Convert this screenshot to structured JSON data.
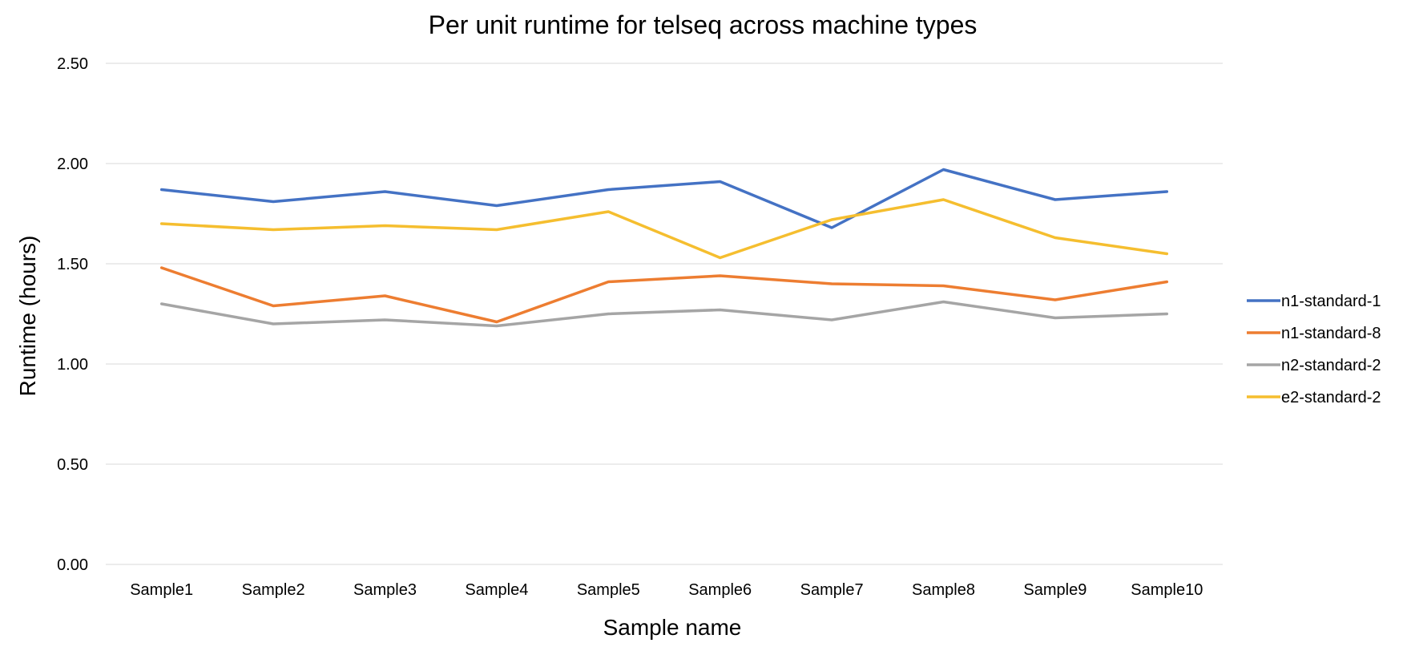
{
  "chart_data": {
    "type": "line",
    "title": "Per unit runtime for telseq across machine types",
    "xlabel": "Sample name",
    "ylabel": "Runtime (hours)",
    "categories": [
      "Sample1",
      "Sample2",
      "Sample3",
      "Sample4",
      "Sample5",
      "Sample6",
      "Sample7",
      "Sample8",
      "Sample9",
      "Sample10"
    ],
    "ylim": [
      0,
      2.5
    ],
    "yticks": [
      0,
      0.5,
      1.0,
      1.5,
      2.0,
      2.5
    ],
    "ytick_labels": [
      "0.00",
      "0.50",
      "1.00",
      "1.50",
      "2.00",
      "2.50"
    ],
    "grid": true,
    "legend_position": "right",
    "series": [
      {
        "name": "n1-standard-1",
        "color": "#4472C4",
        "values": [
          1.87,
          1.81,
          1.86,
          1.79,
          1.87,
          1.91,
          1.68,
          1.97,
          1.82,
          1.86
        ]
      },
      {
        "name": "n1-standard-8",
        "color": "#ED7D31",
        "values": [
          1.48,
          1.29,
          1.34,
          1.21,
          1.41,
          1.44,
          1.4,
          1.39,
          1.32,
          1.41
        ]
      },
      {
        "name": "n2-standard-2",
        "color": "#A5A5A5",
        "values": [
          1.3,
          1.2,
          1.22,
          1.19,
          1.25,
          1.27,
          1.22,
          1.31,
          1.23,
          1.25
        ]
      },
      {
        "name": "e2-standard-2",
        "color": "#F5BE2F",
        "values": [
          1.7,
          1.67,
          1.69,
          1.67,
          1.76,
          1.53,
          1.72,
          1.82,
          1.63,
          1.55
        ]
      }
    ]
  }
}
